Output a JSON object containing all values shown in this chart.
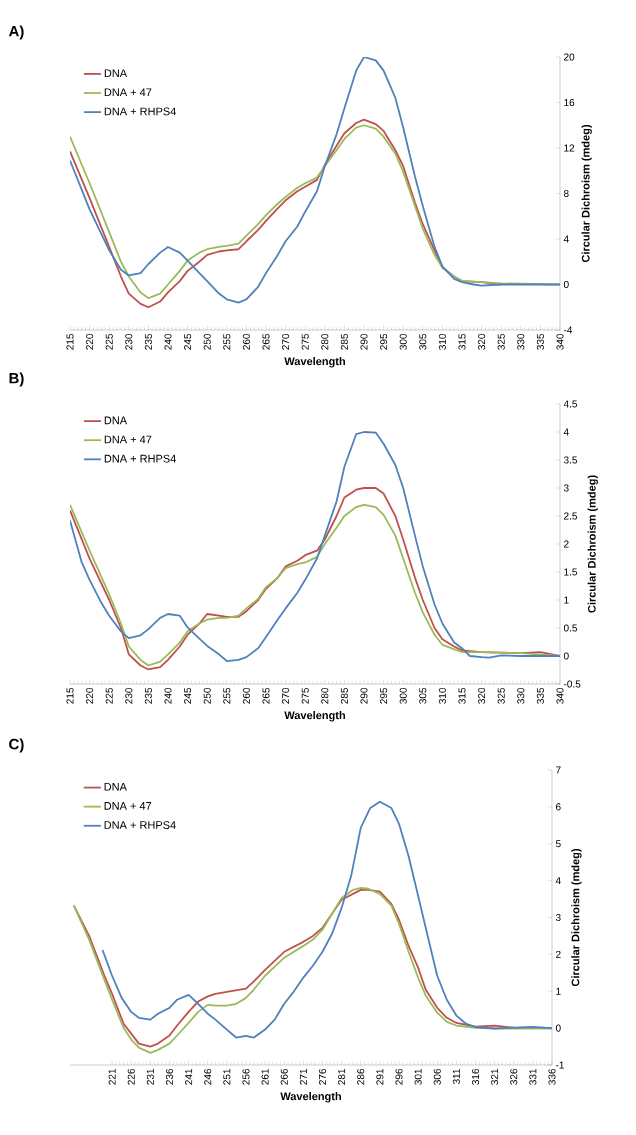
{
  "chart_data": [
    {
      "type": "line",
      "title": "A)",
      "xlabel": "Wavelength",
      "ylabel": "Circular Dichroism (mdeg)",
      "legend": "top left",
      "xlim": [
        215,
        340
      ],
      "xticks": [
        215,
        220,
        225,
        230,
        235,
        240,
        245,
        250,
        255,
        260,
        265,
        270,
        275,
        280,
        285,
        290,
        295,
        300,
        305,
        310,
        315,
        320,
        325,
        330,
        335,
        340
      ],
      "ylim": [
        -4,
        20
      ],
      "yticks": [
        -4,
        0,
        4,
        8,
        12,
        16,
        20
      ],
      "series": [
        {
          "name": "DNA",
          "color": "#c0504d",
          "x": [
            215,
            220,
            225,
            228,
            230,
            233,
            235,
            238,
            240,
            243,
            245,
            248,
            250,
            253,
            255,
            258,
            260,
            263,
            265,
            268,
            270,
            273,
            275,
            278,
            280,
            283,
            285,
            288,
            290,
            293,
            295,
            298,
            300,
            303,
            305,
            308,
            310,
            313,
            315,
            320,
            325
          ],
          "values": [
            11.7,
            7.6,
            3.3,
            0.7,
            -0.8,
            -1.7,
            -2.0,
            -1.5,
            -0.7,
            0.3,
            1.2,
            2.0,
            2.6,
            2.9,
            3.0,
            3.1,
            3.8,
            4.8,
            5.6,
            6.7,
            7.4,
            8.2,
            8.6,
            9.2,
            10.5,
            12.2,
            13.3,
            14.2,
            14.5,
            14.1,
            13.5,
            11.8,
            10.4,
            7.2,
            5.3,
            3.0,
            1.5,
            0.7,
            0.3,
            0.2,
            0
          ]
        },
        {
          "name": "DNA + 47",
          "color": "#9bbb59",
          "x": [
            215,
            220,
            225,
            228,
            230,
            233,
            235,
            238,
            240,
            243,
            245,
            248,
            250,
            253,
            255,
            258,
            260,
            263,
            265,
            268,
            270,
            273,
            275,
            278,
            280,
            283,
            285,
            288,
            290,
            293,
            295,
            298,
            300,
            303,
            305,
            308,
            310,
            313,
            315,
            320,
            325,
            340
          ],
          "values": [
            13.0,
            8.9,
            4.6,
            2.0,
            0.7,
            -0.7,
            -1.2,
            -0.8,
            0,
            1.2,
            2.1,
            2.8,
            3.1,
            3.3,
            3.4,
            3.6,
            4.3,
            5.3,
            6.1,
            7.1,
            7.7,
            8.5,
            8.9,
            9.4,
            10.4,
            11.8,
            12.8,
            13.8,
            14.0,
            13.7,
            13.0,
            11.5,
            9.9,
            6.9,
            4.9,
            2.6,
            1.5,
            0.7,
            0.3,
            0.2,
            0.1,
            0
          ]
        },
        {
          "name": "DNA + RHPS4",
          "color": "#4f81bd",
          "x": [
            215,
            220,
            225,
            228,
            230,
            233,
            235,
            238,
            240,
            243,
            245,
            248,
            250,
            253,
            255,
            258,
            260,
            263,
            265,
            268,
            270,
            273,
            275,
            278,
            280,
            283,
            285,
            288,
            290,
            293,
            295,
            298,
            300,
            303,
            305,
            308,
            310,
            313,
            315,
            318,
            320,
            325,
            340
          ],
          "values": [
            10.9,
            6.6,
            3.0,
            1.3,
            0.8,
            1.0,
            1.8,
            2.8,
            3.3,
            2.8,
            2.1,
            1.0,
            0.3,
            -0.8,
            -1.3,
            -1.6,
            -1.3,
            -0.2,
            1.0,
            2.6,
            3.8,
            5.1,
            6.4,
            8.2,
            10.4,
            13.2,
            15.5,
            18.8,
            20.0,
            19.7,
            18.8,
            16.4,
            13.8,
            9.5,
            6.9,
            3.3,
            1.6,
            0.5,
            0.2,
            0,
            -0.1,
            0,
            0
          ]
        }
      ]
    },
    {
      "type": "line",
      "title": "B)",
      "xlabel": "Wavelength",
      "ylabel": "Circular Dichroism (mdeg)",
      "legend": "top left",
      "xlim": [
        215,
        340
      ],
      "xticks": [
        215,
        220,
        225,
        230,
        235,
        240,
        245,
        250,
        255,
        260,
        265,
        270,
        275,
        280,
        285,
        290,
        295,
        300,
        305,
        310,
        315,
        320,
        325,
        330,
        335,
        340
      ],
      "ylim": [
        -0.5,
        4.5
      ],
      "yticks": [
        -0.5,
        0,
        0.5,
        1,
        1.5,
        2,
        2.5,
        3,
        3.5,
        4,
        4.5
      ],
      "series": [
        {
          "name": "DNA",
          "color": "#c0504d",
          "x": [
            215,
            220,
            225,
            228,
            230,
            233,
            235,
            238,
            240,
            243,
            245,
            248,
            250,
            253,
            255,
            258,
            260,
            263,
            265,
            268,
            270,
            273,
            275,
            278,
            280,
            283,
            285,
            288,
            290,
            293,
            295,
            298,
            300,
            303,
            305,
            308,
            310,
            313,
            315,
            320,
            330,
            335,
            340
          ],
          "values": [
            2.6,
            1.74,
            1.0,
            0.5,
            0.03,
            -0.17,
            -0.24,
            -0.2,
            -0.07,
            0.17,
            0.38,
            0.58,
            0.75,
            0.72,
            0.7,
            0.7,
            0.8,
            1.0,
            1.2,
            1.4,
            1.6,
            1.7,
            1.8,
            1.88,
            2.08,
            2.5,
            2.83,
            2.97,
            3.0,
            3.0,
            2.9,
            2.5,
            2.08,
            1.4,
            1.0,
            0.5,
            0.3,
            0.17,
            0.1,
            0.07,
            0.05,
            0.07,
            0
          ]
        },
        {
          "name": "DNA + 47",
          "color": "#9bbb59",
          "x": [
            215,
            220,
            225,
            228,
            230,
            233,
            235,
            238,
            240,
            243,
            245,
            248,
            250,
            253,
            255,
            258,
            260,
            263,
            265,
            268,
            270,
            273,
            275,
            278,
            280,
            283,
            285,
            288,
            290,
            293,
            295,
            298,
            300,
            303,
            305,
            308,
            310,
            315,
            320,
            330,
            340
          ],
          "values": [
            2.7,
            1.88,
            1.1,
            0.58,
            0.17,
            -0.07,
            -0.17,
            -0.1,
            0.03,
            0.24,
            0.44,
            0.58,
            0.65,
            0.68,
            0.68,
            0.72,
            0.85,
            1.02,
            1.23,
            1.4,
            1.57,
            1.64,
            1.67,
            1.77,
            2.0,
            2.29,
            2.5,
            2.66,
            2.7,
            2.66,
            2.52,
            2.15,
            1.74,
            1.13,
            0.78,
            0.38,
            0.2,
            0.07,
            0.07,
            0.05,
            0
          ]
        },
        {
          "name": "DNA + RHPS4",
          "color": "#4f81bd",
          "x": [
            215,
            218,
            220,
            223,
            225,
            228,
            230,
            233,
            235,
            238,
            240,
            243,
            245,
            248,
            250,
            253,
            255,
            258,
            260,
            263,
            265,
            268,
            270,
            273,
            275,
            278,
            280,
            283,
            285,
            288,
            290,
            293,
            295,
            298,
            300,
            303,
            305,
            308,
            310,
            313,
            315,
            317,
            320,
            322,
            325,
            330,
            340
          ],
          "values": [
            2.42,
            1.67,
            1.36,
            0.95,
            0.72,
            0.44,
            0.32,
            0.37,
            0.48,
            0.68,
            0.75,
            0.72,
            0.51,
            0.31,
            0.18,
            0.03,
            -0.09,
            -0.07,
            -0.02,
            0.14,
            0.34,
            0.65,
            0.85,
            1.13,
            1.36,
            1.74,
            2.15,
            2.76,
            3.38,
            3.96,
            4.0,
            3.99,
            3.79,
            3.41,
            3.0,
            2.15,
            1.6,
            0.92,
            0.58,
            0.24,
            0.14,
            0,
            -0.02,
            -0.03,
            0.01,
            0,
            0
          ]
        }
      ]
    },
    {
      "type": "line",
      "title": "C)",
      "xlabel": "Wavelength",
      "ylabel": "Circular Dichroism (mdeg)",
      "legend": "top left",
      "xlim": [
        210,
        336
      ],
      "xticks": [
        221,
        226,
        231,
        236,
        241,
        246,
        251,
        256,
        261,
        266,
        271,
        276,
        281,
        286,
        291,
        296,
        301,
        306,
        311,
        316,
        321,
        326,
        331,
        336
      ],
      "ylim": [
        -1,
        7
      ],
      "yticks": [
        -1,
        0,
        1,
        2,
        3,
        4,
        5,
        6,
        7
      ],
      "series": [
        {
          "name": "DNA",
          "color": "#c0504d",
          "x": [
            211,
            215,
            219,
            221,
            224,
            226,
            228,
            231,
            233,
            236,
            238,
            241,
            243.5,
            246,
            248,
            251,
            256,
            258,
            261,
            266,
            271,
            273.5,
            276,
            281,
            286,
            288,
            291,
            294,
            296,
            298.5,
            301,
            303,
            306,
            308.5,
            311,
            316,
            321,
            326,
            336
          ],
          "values": [
            3.32,
            2.5,
            1.42,
            0.93,
            0.12,
            -0.15,
            -0.42,
            -0.5,
            -0.42,
            -0.2,
            0.07,
            0.44,
            0.72,
            0.86,
            0.93,
            0.98,
            1.07,
            1.26,
            1.58,
            2.07,
            2.34,
            2.5,
            2.72,
            3.48,
            3.75,
            3.75,
            3.7,
            3.37,
            2.94,
            2.23,
            1.64,
            1.04,
            0.55,
            0.28,
            0.14,
            0.04,
            0.07,
            0.01,
            0
          ]
        },
        {
          "name": "DNA + 47",
          "color": "#9bbb59",
          "x": [
            211,
            215,
            219,
            221,
            224,
            226,
            228,
            231,
            233,
            236,
            238,
            241,
            243.5,
            246,
            248,
            251,
            253.5,
            256,
            258,
            261,
            266,
            271,
            273.5,
            276,
            281,
            284,
            286,
            288,
            291,
            294,
            296,
            298.5,
            301,
            303,
            306,
            308.5,
            311,
            316,
            321,
            336
          ],
          "values": [
            3.32,
            2.4,
            1.31,
            0.77,
            0.01,
            -0.31,
            -0.53,
            -0.67,
            -0.59,
            -0.42,
            -0.2,
            0.14,
            0.44,
            0.63,
            0.61,
            0.61,
            0.66,
            0.82,
            1.04,
            1.42,
            1.91,
            2.23,
            2.4,
            2.67,
            3.53,
            3.75,
            3.8,
            3.78,
            3.64,
            3.32,
            2.83,
            2.07,
            1.37,
            0.88,
            0.42,
            0.17,
            0.07,
            0.01,
            -0.01,
            -0.01
          ]
        },
        {
          "name": "DNA + RHPS4",
          "color": "#4f81bd",
          "x": [
            218.5,
            221,
            223.5,
            226,
            228,
            231,
            233,
            236,
            238,
            241,
            243.5,
            246,
            248,
            251,
            253.5,
            256,
            258,
            261,
            263.5,
            266,
            268.5,
            271,
            273.5,
            276,
            278.5,
            281,
            283.5,
            286,
            288.5,
            291,
            294,
            296,
            298.5,
            301,
            303.5,
            306,
            308.5,
            311,
            313.5,
            316,
            321,
            331,
            336
          ],
          "values": [
            2.12,
            1.42,
            0.82,
            0.44,
            0.28,
            0.23,
            0.39,
            0.55,
            0.77,
            0.9,
            0.66,
            0.39,
            0.23,
            -0.04,
            -0.26,
            -0.21,
            -0.26,
            -0.04,
            0.23,
            0.66,
            0.99,
            1.37,
            1.69,
            2.07,
            2.56,
            3.26,
            4.13,
            5.43,
            5.97,
            6.14,
            5.97,
            5.54,
            4.67,
            3.59,
            2.5,
            1.42,
            0.77,
            0.34,
            0.12,
            0.03,
            -0.01,
            0.03,
            0
          ]
        }
      ]
    }
  ]
}
